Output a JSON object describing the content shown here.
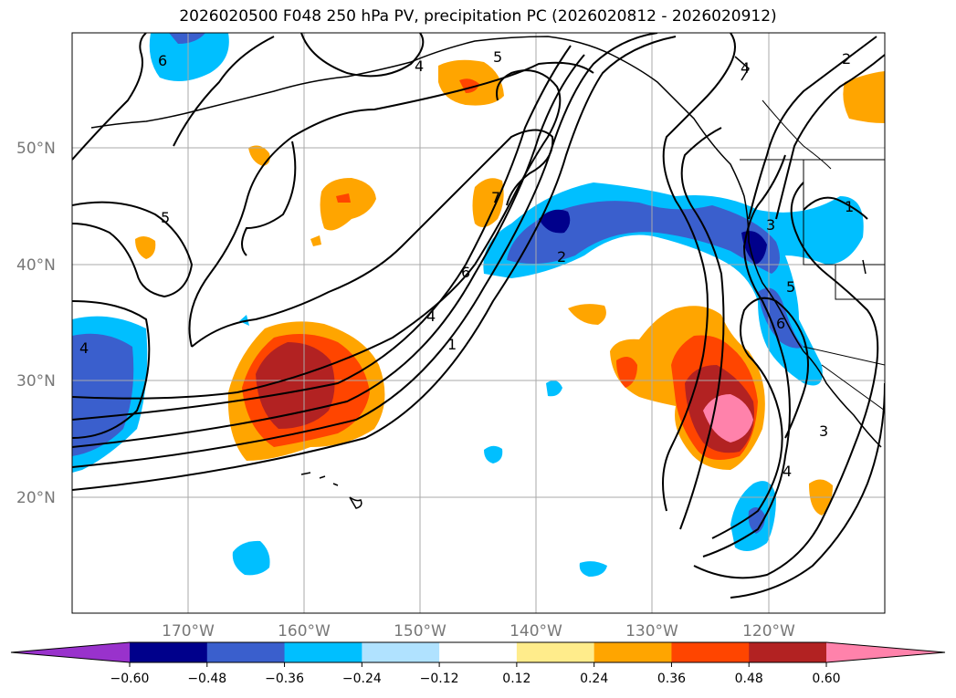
{
  "title": "2026020500 F048 250 hPa PV, precipitation PC (2026020812 - 2026020912)",
  "lat_labels": [
    "50°N",
    "40°N",
    "30°N",
    "20°N"
  ],
  "lon_labels": [
    "170°W",
    "160°W",
    "150°W",
    "140°W",
    "130°W",
    "120°W"
  ],
  "colorbar": {
    "tick_labels": [
      "−0.60",
      "−0.48",
      "−0.36",
      "−0.24",
      "−0.12",
      "0.12",
      "0.24",
      "0.36",
      "0.48",
      "0.60"
    ],
    "colors": [
      "#9932cc",
      "#00008b",
      "#3a5fcd",
      "#00bfff",
      "#b0e2ff",
      "#ffffff",
      "#ffec8b",
      "#ffa500",
      "#ff4500",
      "#b22222",
      "#ff82ab"
    ]
  },
  "contour_labels": [
    "6",
    "4",
    "5",
    "5",
    "7",
    "2",
    "6",
    "4",
    "1",
    "4",
    "3",
    "5",
    "6",
    "3",
    "4",
    "2",
    "1",
    "4"
  ]
}
